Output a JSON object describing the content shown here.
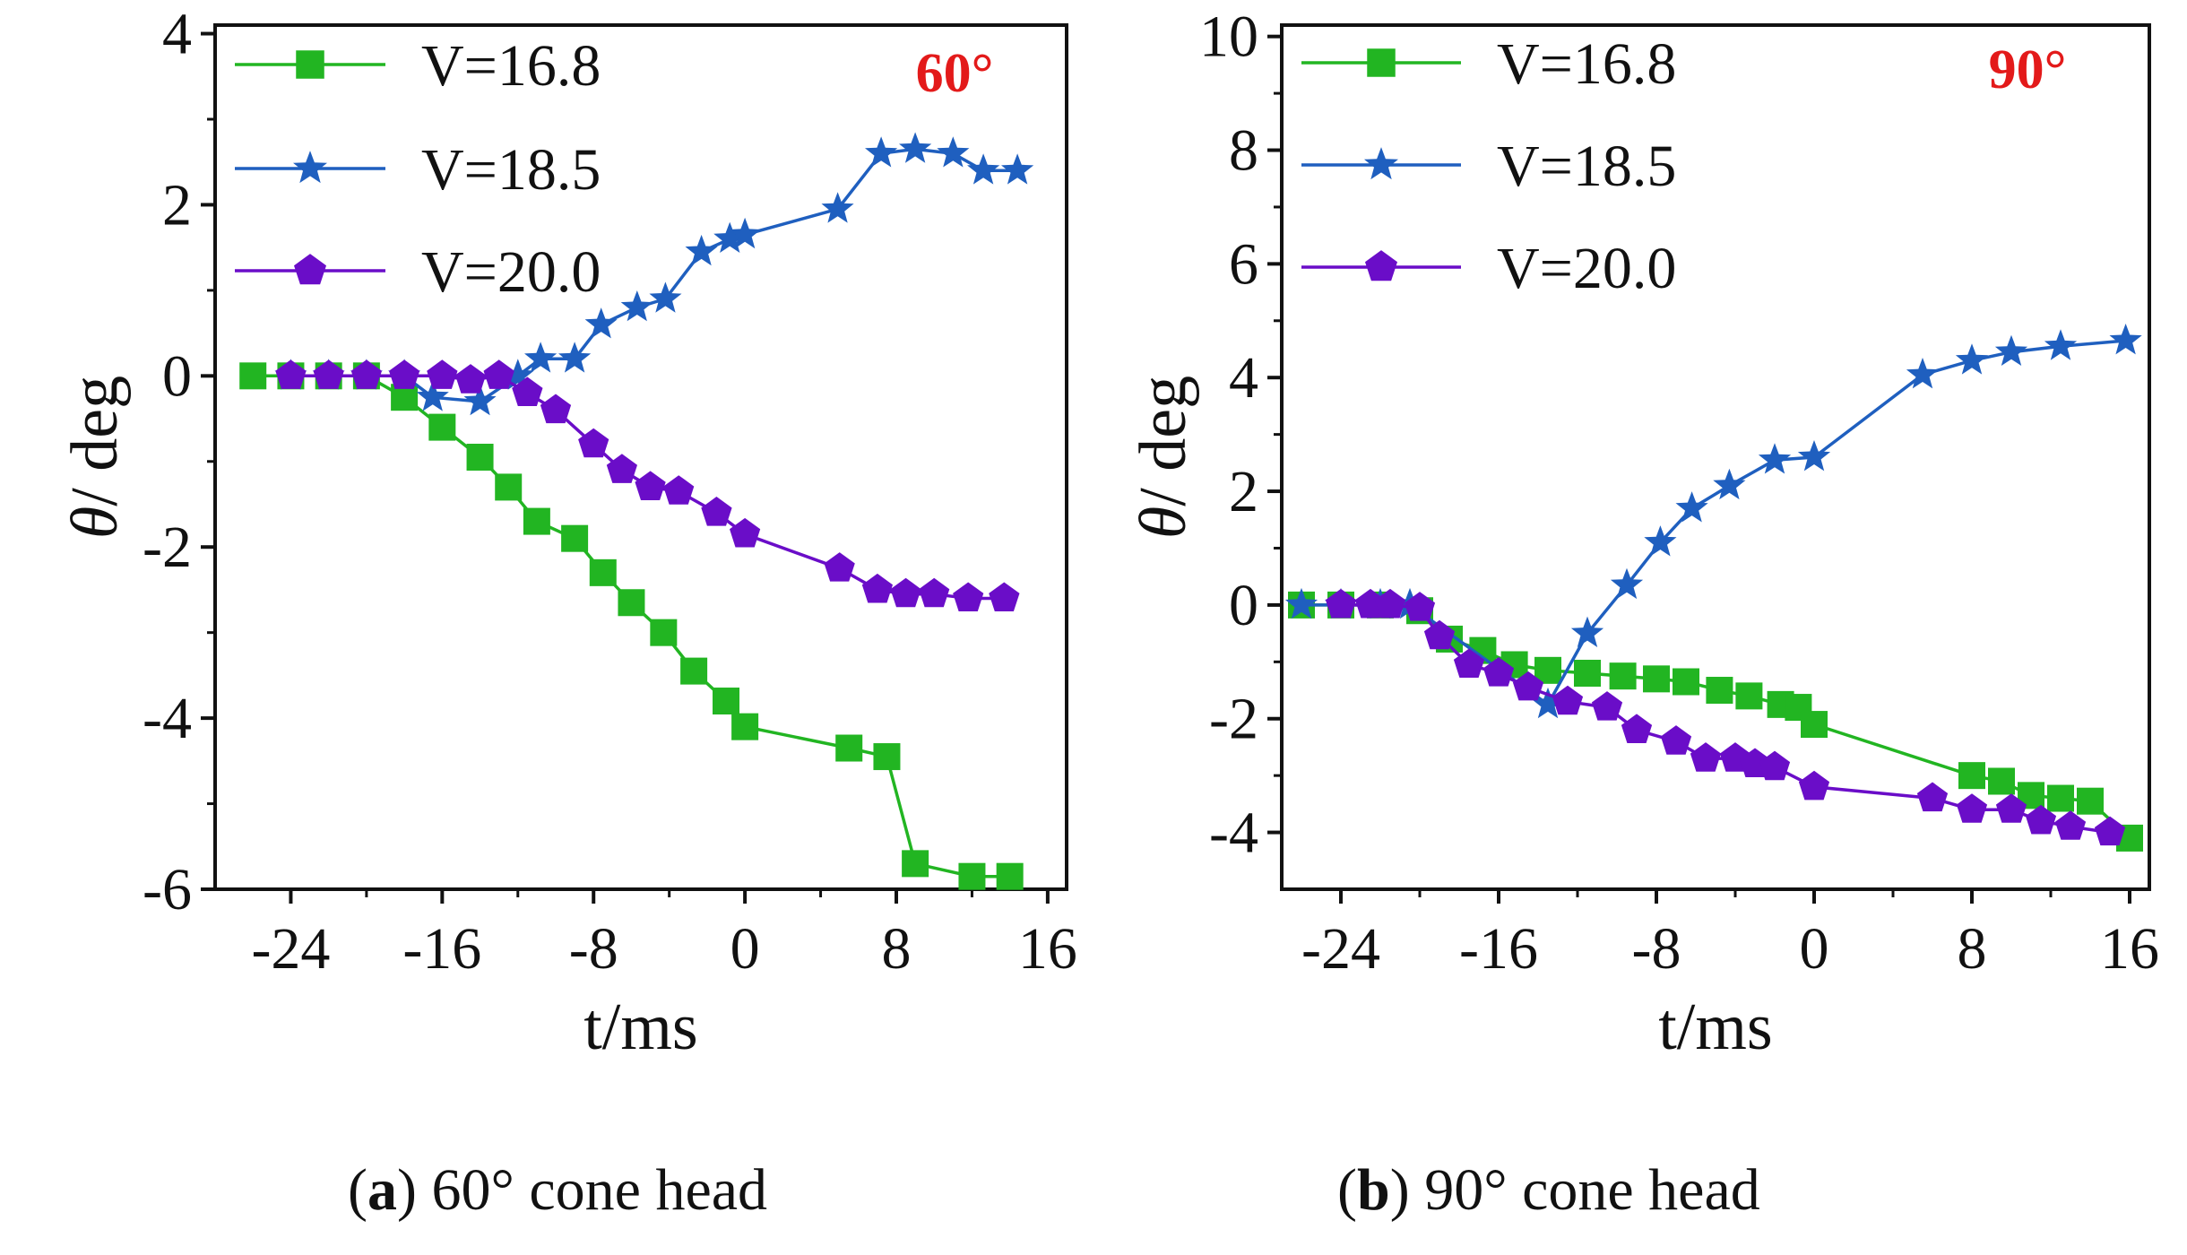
{
  "colors": {
    "green": "#22b522",
    "blue": "#1f5fbf",
    "purple": "#6a0dc8",
    "angle": "#e31a1a",
    "axis": "#111111"
  },
  "chart_data": [
    {
      "type": "line",
      "id": "a",
      "angle_label": "60°",
      "xlabel": "t/ms",
      "ylabel_symbol": "θ",
      "ylabel_unit": "/ deg",
      "xlim": [
        -28,
        17
      ],
      "ylim": [
        -6,
        4.1
      ],
      "xticks": [
        -24,
        -16,
        -8,
        0,
        8,
        16
      ],
      "yticks": [
        -6,
        -4,
        -2,
        0,
        2,
        4
      ],
      "legend_position": "top-left",
      "series": [
        {
          "name": "V=16.8",
          "marker": "square",
          "color": "green",
          "x": [
            -26,
            -24,
            -22,
            -20,
            -18,
            -16,
            -14,
            -12.5,
            -11,
            -9,
            -7.5,
            -6,
            -4.3,
            -2.7,
            -1,
            0,
            5.5,
            7.5,
            9,
            12,
            14
          ],
          "y": [
            0,
            0,
            0,
            0,
            -0.25,
            -0.6,
            -0.95,
            -1.3,
            -1.7,
            -1.9,
            -2.3,
            -2.65,
            -3.0,
            -3.45,
            -3.8,
            -4.1,
            -4.35,
            -4.45,
            -5.7,
            -5.85,
            -5.85
          ]
        },
        {
          "name": "V=18.5",
          "marker": "star",
          "color": "blue",
          "x": [
            -24,
            -22,
            -20,
            -18,
            -16.5,
            -14,
            -12,
            -10.8,
            -9,
            -7.6,
            -5.7,
            -4.2,
            -2.3,
            -0.8,
            0,
            4.9,
            7.2,
            9,
            11,
            12.6,
            14.4
          ],
          "y": [
            0,
            0,
            0,
            0,
            -0.25,
            -0.3,
            0,
            0.2,
            0.2,
            0.6,
            0.8,
            0.9,
            1.45,
            1.6,
            1.65,
            1.95,
            2.6,
            2.65,
            2.6,
            2.4,
            2.4
          ]
        },
        {
          "name": "V=20.0",
          "marker": "pentagon",
          "color": "purple",
          "x": [
            -24,
            -22,
            -20,
            -18,
            -16,
            -14.5,
            -13,
            -11.5,
            -10,
            -8,
            -6.5,
            -5,
            -3.5,
            -1.5,
            0,
            5,
            7,
            8.5,
            10,
            11.8,
            13.7
          ],
          "y": [
            0,
            0,
            0,
            0,
            0,
            -0.05,
            0,
            -0.2,
            -0.4,
            -0.8,
            -1.1,
            -1.3,
            -1.35,
            -1.6,
            -1.85,
            -2.25,
            -2.5,
            -2.55,
            -2.55,
            -2.6,
            -2.6
          ]
        }
      ]
    },
    {
      "type": "line",
      "id": "b",
      "angle_label": "90°",
      "xlabel": "t/ms",
      "ylabel_symbol": "θ",
      "ylabel_unit": "/ deg",
      "xlim": [
        -27,
        17
      ],
      "ylim": [
        -5,
        10.2
      ],
      "xticks": [
        -24,
        -16,
        -8,
        0,
        8,
        16
      ],
      "yticks": [
        -4,
        -2,
        0,
        2,
        4,
        6,
        8,
        10
      ],
      "legend_position": "top-left",
      "series": [
        {
          "name": "V=16.8",
          "marker": "square",
          "color": "green",
          "x": [
            -26,
            -24,
            -22,
            -20,
            -18.5,
            -16.8,
            -15.2,
            -13.5,
            -11.5,
            -9.7,
            -8,
            -6.5,
            -4.8,
            -3.3,
            -1.7,
            -0.8,
            0,
            8,
            9.5,
            11,
            12.5,
            14,
            16
          ],
          "y": [
            0,
            0,
            0,
            -0.1,
            -0.6,
            -0.8,
            -1.05,
            -1.15,
            -1.2,
            -1.25,
            -1.3,
            -1.35,
            -1.5,
            -1.6,
            -1.75,
            -1.8,
            -2.1,
            -3.0,
            -3.1,
            -3.35,
            -3.4,
            -3.45,
            -4.1
          ]
        },
        {
          "name": "V=18.5",
          "marker": "star",
          "color": "blue",
          "x": [
            -26,
            -24,
            -22,
            -20.5,
            -13.5,
            -11.5,
            -9.5,
            -7.8,
            -6.2,
            -4.3,
            -2,
            0,
            5.5,
            8,
            10,
            12.5,
            15.8
          ],
          "y": [
            0,
            0,
            0,
            0,
            -1.75,
            -0.5,
            0.35,
            1.1,
            1.7,
            2.1,
            2.55,
            2.6,
            4.05,
            4.3,
            4.45,
            4.55,
            4.65
          ]
        },
        {
          "name": "V=20.0",
          "marker": "pentagon",
          "color": "purple",
          "x": [
            -24,
            -22.5,
            -21.5,
            -20,
            -19,
            -17.5,
            -16,
            -14.5,
            -12.5,
            -10.5,
            -9,
            -7,
            -5.5,
            -4,
            -3,
            -2,
            0,
            6,
            8,
            10,
            11.5,
            13,
            15
          ],
          "y": [
            0,
            0,
            0,
            -0.05,
            -0.55,
            -1.05,
            -1.2,
            -1.45,
            -1.7,
            -1.8,
            -2.2,
            -2.4,
            -2.7,
            -2.7,
            -2.8,
            -2.85,
            -3.2,
            -3.4,
            -3.6,
            -3.6,
            -3.8,
            -3.9,
            -4.0
          ]
        }
      ]
    }
  ],
  "captions": [
    {
      "letter": "a",
      "text": "60° cone head"
    },
    {
      "letter": "b",
      "text": "90° cone head"
    }
  ]
}
